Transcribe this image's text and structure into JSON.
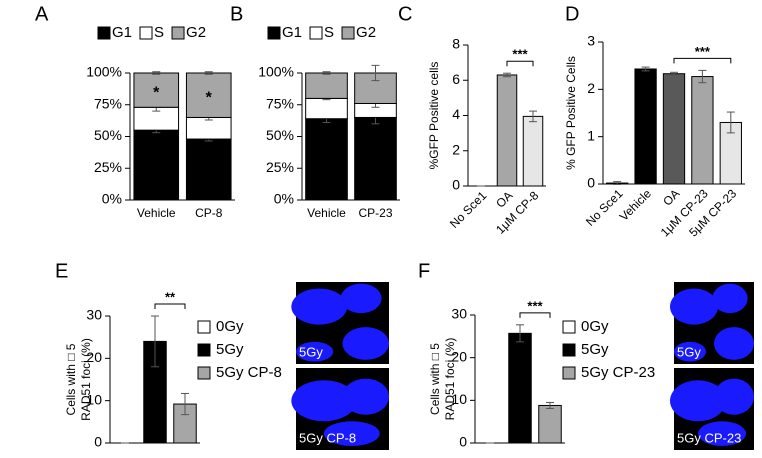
{
  "chart_data": [
    {
      "type": "stacked_bar",
      "panel": "A",
      "categories": [
        "Vehicle",
        "CP-8"
      ],
      "series": [
        {
          "name": "G1",
          "color": "#000000",
          "values": [
            55,
            48
          ],
          "errors": [
            2,
            1.5
          ],
          "annotations": [
            "*",
            "*"
          ],
          "annotation_color": "#ffffff"
        },
        {
          "name": "S",
          "color": "#ffffff",
          "values": [
            18,
            17
          ],
          "errors": [
            3,
            2
          ]
        },
        {
          "name": "G2",
          "color": "#a6a6a6",
          "values": [
            27,
            35
          ],
          "errors": [
            1,
            1
          ],
          "annotations": [
            "*",
            "*"
          ],
          "annotation_color": "#000000"
        }
      ],
      "ylim": [
        0,
        100
      ],
      "yticks": [
        {
          "value": 0,
          "label": "0%"
        },
        {
          "value": 25,
          "label": "25%"
        },
        {
          "value": 50,
          "label": "50%"
        },
        {
          "value": 75,
          "label": "75%"
        },
        {
          "value": 100,
          "label": "100%"
        }
      ],
      "legend": "top"
    },
    {
      "type": "stacked_bar",
      "panel": "B",
      "categories": [
        "Vehicle",
        "CP-23"
      ],
      "series": [
        {
          "name": "G1",
          "color": "#000000",
          "values": [
            64,
            65
          ],
          "errors": [
            3,
            5
          ]
        },
        {
          "name": "S",
          "color": "#ffffff",
          "values": [
            16,
            11
          ],
          "errors": [
            1,
            3
          ]
        },
        {
          "name": "G2",
          "color": "#a6a6a6",
          "values": [
            20,
            24
          ],
          "errors": [
            1,
            6
          ]
        }
      ],
      "ylim": [
        0,
        100
      ],
      "yticks": [
        {
          "value": 0,
          "label": "0%"
        },
        {
          "value": 25,
          "label": "25%"
        },
        {
          "value": 50,
          "label": "50%"
        },
        {
          "value": 75,
          "label": "75%"
        },
        {
          "value": 100,
          "label": "100%"
        }
      ],
      "legend": "top"
    },
    {
      "type": "bar",
      "panel": "C",
      "ylabel": [
        "%GFP Positive cells"
      ],
      "categories": [
        "No Sce1",
        "OA",
        "1μM CP-8"
      ],
      "values": [
        0,
        6.3,
        3.95
      ],
      "errors": [
        0,
        0.1,
        0.3
      ],
      "colors": [
        "#ffffff",
        "#a6a6a6",
        "#e6e6e6"
      ],
      "ylim": [
        0,
        8
      ],
      "yticks": [
        0,
        2,
        4,
        6,
        8
      ],
      "significance": {
        "label": "***",
        "between": [
          "OA",
          "1μM CP-8"
        ]
      }
    },
    {
      "type": "bar",
      "panel": "D",
      "ylabel": [
        "% GFP Positive Cells"
      ],
      "categories": [
        "No Sce1",
        "Vehicle",
        "OA",
        "1μM CP-23",
        "5μM CP-23"
      ],
      "values": [
        0.02,
        2.43,
        2.33,
        2.27,
        1.3
      ],
      "errors": [
        0.03,
        0.04,
        0.03,
        0.13,
        0.22
      ],
      "colors": [
        "#ffffff",
        "#000000",
        "#595959",
        "#a6a6a6",
        "#e6e6e6"
      ],
      "ylim": [
        0,
        3
      ],
      "yticks": [
        0,
        1,
        2,
        3
      ],
      "significance": {
        "label": "***",
        "between": [
          "OA",
          "5μM CP-23"
        ]
      }
    },
    {
      "type": "bar",
      "panel": "E",
      "ylabel": [
        "Cells with □ 5",
        "RAD51 foci (%)"
      ],
      "categories": [
        "0Gy",
        "5Gy",
        "5Gy CP-8"
      ],
      "values": [
        0,
        24,
        9.2
      ],
      "errors": [
        0,
        6,
        2.5
      ],
      "colors": [
        "#ffffff",
        "#000000",
        "#a6a6a6"
      ],
      "ylim": [
        0,
        30
      ],
      "yticks": [
        0,
        10,
        20,
        30
      ],
      "legend": "right",
      "significance": {
        "label": "**",
        "between": [
          "5Gy",
          "5Gy CP-8"
        ]
      },
      "images": [
        "5Gy",
        "5Gy CP-8"
      ]
    },
    {
      "type": "bar",
      "panel": "F",
      "ylabel": [
        "Cells with □ 5",
        "RAD51 foci (%)"
      ],
      "categories": [
        "0Gy",
        "5Gy",
        "5Gy CP-23"
      ],
      "values": [
        0,
        25.7,
        8.8
      ],
      "errors": [
        0,
        2,
        0.7
      ],
      "colors": [
        "#ffffff",
        "#000000",
        "#a6a6a6"
      ],
      "ylim": [
        0,
        30
      ],
      "yticks": [
        0,
        10,
        20,
        30
      ],
      "legend": "right",
      "significance": {
        "label": "***",
        "between": [
          "5Gy",
          "5Gy CP-23"
        ]
      },
      "images": [
        "5Gy",
        "5Gy CP-23"
      ]
    }
  ]
}
